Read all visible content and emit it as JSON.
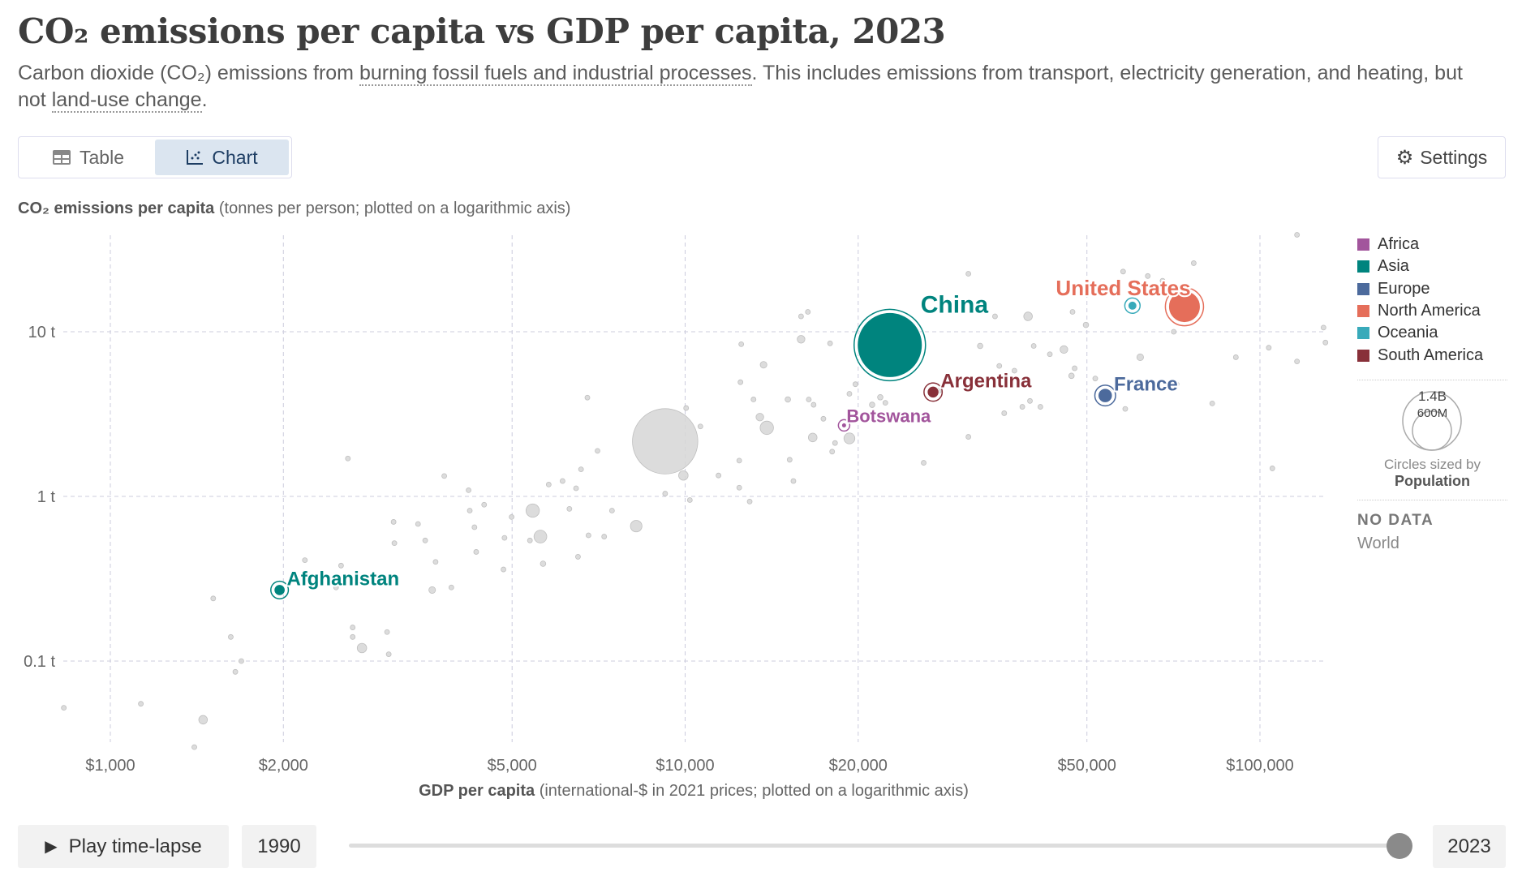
{
  "header": {
    "title": "CO₂ emissions per capita vs GDP per capita, 2023",
    "subtitle_pre": "Carbon dioxide (CO₂) emissions from ",
    "subtitle_link1": "burning fossil fuels and industrial processes",
    "subtitle_mid": ". This includes emissions from transport, electricity generation, and heating, but not ",
    "subtitle_link2": "land-use change",
    "subtitle_post": "."
  },
  "toolbar": {
    "table_label": "Table",
    "chart_label": "Chart",
    "settings_label": "Settings",
    "active_tab": "Chart"
  },
  "timeline": {
    "play_label": "Play time-lapse",
    "start_year": "1990",
    "end_year": "2023",
    "value": 2023
  },
  "legend": {
    "size_big": "1.4B",
    "size_small": "600M",
    "sized_by_prefix": "Circles sized by",
    "sized_by": "Population",
    "no_data_title": "NO DATA",
    "no_data_item": "World"
  },
  "chart_data": {
    "type": "scatter",
    "title": "CO₂ emissions per capita vs GDP per capita, 2023",
    "ylabel_bold": "CO₂ emissions per capita",
    "ylabel_rest": " (tonnes per person; plotted on a logarithmic axis)",
    "xlabel_bold": "GDP per capita",
    "xlabel_rest": " (international-$ in 2021 prices; plotted on a logarithmic axis)",
    "xscale": "log",
    "yscale": "log",
    "grid": true,
    "legend_position": "right",
    "xlim": [
      800,
      140000
    ],
    "ylim": [
      0.028,
      45
    ],
    "xticks": [
      {
        "v": 1000,
        "label": "$1,000"
      },
      {
        "v": 2000,
        "label": "$2,000"
      },
      {
        "v": 5000,
        "label": "$5,000"
      },
      {
        "v": 10000,
        "label": "$10,000"
      },
      {
        "v": 20000,
        "label": "$20,000"
      },
      {
        "v": 50000,
        "label": "$50,000"
      },
      {
        "v": 100000,
        "label": "$100,000"
      }
    ],
    "yticks": [
      {
        "v": 10,
        "label": "10 t"
      },
      {
        "v": 1,
        "label": "1 t"
      },
      {
        "v": 0.1,
        "label": "0.1 t"
      }
    ],
    "regions": [
      {
        "name": "Africa",
        "color": "#a2559c"
      },
      {
        "name": "Asia",
        "color": "#00847e"
      },
      {
        "name": "Europe",
        "color": "#4c6a9c"
      },
      {
        "name": "North America",
        "color": "#e56e5a"
      },
      {
        "name": "Oceania",
        "color": "#38aaba"
      },
      {
        "name": "South America",
        "color": "#883039"
      }
    ],
    "highlighted": [
      {
        "name": "China",
        "region": "Asia",
        "gdp": 22700,
        "co2": 8.3,
        "pop": 1410
      },
      {
        "name": "United States",
        "region": "North America",
        "gdp": 73900,
        "co2": 14.2,
        "pop": 335
      },
      {
        "name": "Argentina",
        "region": "South America",
        "gdp": 27000,
        "co2": 4.3,
        "pop": 46
      },
      {
        "name": "France",
        "region": "Europe",
        "gdp": 53800,
        "co2": 4.1,
        "pop": 68
      },
      {
        "name": "Botswana",
        "region": "Africa",
        "gdp": 18900,
        "co2": 2.7,
        "pop": 2.6
      },
      {
        "name": "Afghanistan",
        "region": "Asia",
        "gdp": 1970,
        "co2": 0.27,
        "pop": 41
      },
      {
        "name": "",
        "region": "Oceania",
        "gdp": 60000,
        "co2": 14.4,
        "pop": 26
      }
    ],
    "other_points": [
      [
        830,
        0.052,
        5
      ],
      [
        1130,
        0.055,
        5
      ],
      [
        1400,
        0.03,
        5
      ],
      [
        1450,
        0.044,
        25
      ],
      [
        1510,
        0.24,
        5
      ],
      [
        1620,
        0.14,
        5
      ],
      [
        1650,
        0.086,
        5
      ],
      [
        1690,
        0.1,
        5
      ],
      [
        2180,
        0.41,
        8
      ],
      [
        2520,
        0.38,
        5
      ],
      [
        2590,
        1.7,
        5
      ],
      [
        2470,
        0.28,
        5
      ],
      [
        2640,
        0.16,
        5
      ],
      [
        2640,
        0.14,
        5
      ],
      [
        2740,
        0.12,
        30
      ],
      [
        3030,
        0.15,
        5
      ],
      [
        3050,
        0.11,
        5
      ],
      [
        3110,
        0.7,
        5
      ],
      [
        3120,
        0.52,
        5
      ],
      [
        3430,
        0.68,
        5
      ],
      [
        3530,
        0.54,
        5
      ],
      [
        3630,
        0.27,
        15
      ],
      [
        3680,
        0.4,
        5
      ],
      [
        3810,
        1.33,
        5
      ],
      [
        3920,
        0.28,
        5
      ],
      [
        4200,
        1.09,
        5
      ],
      [
        4220,
        0.82,
        5
      ],
      [
        4300,
        0.65,
        5
      ],
      [
        4330,
        0.46,
        5
      ],
      [
        4470,
        0.89,
        5
      ],
      [
        4830,
        0.36,
        5
      ],
      [
        4850,
        0.56,
        5
      ],
      [
        4990,
        0.75,
        5
      ],
      [
        5430,
        0.82,
        60
      ],
      [
        5600,
        0.57,
        55
      ],
      [
        5370,
        0.54,
        5
      ],
      [
        5660,
        0.39,
        10
      ],
      [
        5790,
        1.18,
        5
      ],
      [
        6120,
        1.24,
        5
      ],
      [
        6290,
        0.84,
        5
      ],
      [
        6460,
        1.12,
        5
      ],
      [
        6510,
        0.43,
        8
      ],
      [
        6590,
        1.46,
        5
      ],
      [
        6760,
        3.98,
        5
      ],
      [
        6790,
        0.58,
        5
      ],
      [
        7040,
        1.89,
        5
      ],
      [
        7230,
        0.57,
        5
      ],
      [
        7460,
        0.82,
        5
      ],
      [
        8220,
        0.66,
        45
      ],
      [
        9230,
        2.16,
        1430
      ],
      [
        9930,
        1.34,
        30
      ],
      [
        9230,
        1.04,
        5
      ],
      [
        10040,
        3.44,
        5
      ],
      [
        10190,
        0.95,
        5
      ],
      [
        10630,
        2.66,
        5
      ],
      [
        11430,
        1.34,
        5
      ],
      [
        12420,
        1.65,
        5
      ],
      [
        12420,
        1.13,
        5
      ],
      [
        12480,
        4.94,
        5
      ],
      [
        12520,
        8.4,
        5
      ],
      [
        12950,
        0.93,
        5
      ],
      [
        13150,
        3.88,
        8
      ],
      [
        13490,
        3.03,
        20
      ],
      [
        13690,
        6.3,
        15
      ],
      [
        13870,
        2.61,
        60
      ],
      [
        15090,
        3.88,
        10
      ],
      [
        15200,
        1.67,
        5
      ],
      [
        15430,
        1.24,
        5
      ],
      [
        15910,
        9.0,
        20
      ],
      [
        15910,
        12.4,
        5
      ],
      [
        16350,
        13.2,
        5
      ],
      [
        16410,
        3.88,
        5
      ],
      [
        16670,
        2.28,
        25
      ],
      [
        16730,
        3.6,
        5
      ],
      [
        17400,
        2.96,
        5
      ],
      [
        17870,
        8.5,
        5
      ],
      [
        18020,
        1.87,
        5
      ],
      [
        18230,
        2.11,
        5
      ],
      [
        19310,
        2.25,
        40
      ],
      [
        19310,
        4.2,
        5
      ],
      [
        19780,
        4.8,
        5
      ],
      [
        21150,
        3.6,
        10
      ],
      [
        21850,
        4.0,
        10
      ],
      [
        22300,
        3.7,
        5
      ],
      [
        26000,
        1.6,
        5
      ],
      [
        27700,
        4.4,
        5
      ],
      [
        31100,
        22.5,
        5
      ],
      [
        31100,
        2.3,
        5
      ],
      [
        32600,
        8.2,
        10
      ],
      [
        34600,
        12.4,
        5
      ],
      [
        35200,
        6.2,
        5
      ],
      [
        35900,
        3.2,
        5
      ],
      [
        37400,
        5.8,
        5
      ],
      [
        38600,
        3.5,
        5
      ],
      [
        39500,
        12.4,
        25
      ],
      [
        39800,
        3.8,
        5
      ],
      [
        40400,
        8.2,
        5
      ],
      [
        41500,
        3.5,
        5
      ],
      [
        43100,
        7.3,
        5
      ],
      [
        45600,
        7.8,
        20
      ],
      [
        47000,
        5.4,
        10
      ],
      [
        47200,
        13.2,
        5
      ],
      [
        47600,
        6.0,
        5
      ],
      [
        49800,
        11.0,
        10
      ],
      [
        51700,
        5.2,
        8
      ],
      [
        54600,
        4.3,
        5
      ],
      [
        57800,
        23.2,
        5
      ],
      [
        58300,
        3.4,
        5
      ],
      [
        61900,
        7.0,
        15
      ],
      [
        63800,
        21.8,
        5
      ],
      [
        67700,
        20.4,
        5
      ],
      [
        70800,
        10.0,
        5
      ],
      [
        71600,
        4.8,
        5
      ],
      [
        76700,
        26.1,
        5
      ],
      [
        82600,
        3.67,
        5
      ],
      [
        90800,
        7.0,
        5
      ],
      [
        103600,
        8.0,
        5
      ],
      [
        105100,
        1.48,
        5
      ],
      [
        116000,
        6.6,
        5
      ],
      [
        116000,
        38.8,
        5
      ],
      [
        129000,
        10.6,
        5
      ],
      [
        130000,
        8.6,
        5
      ]
    ]
  }
}
